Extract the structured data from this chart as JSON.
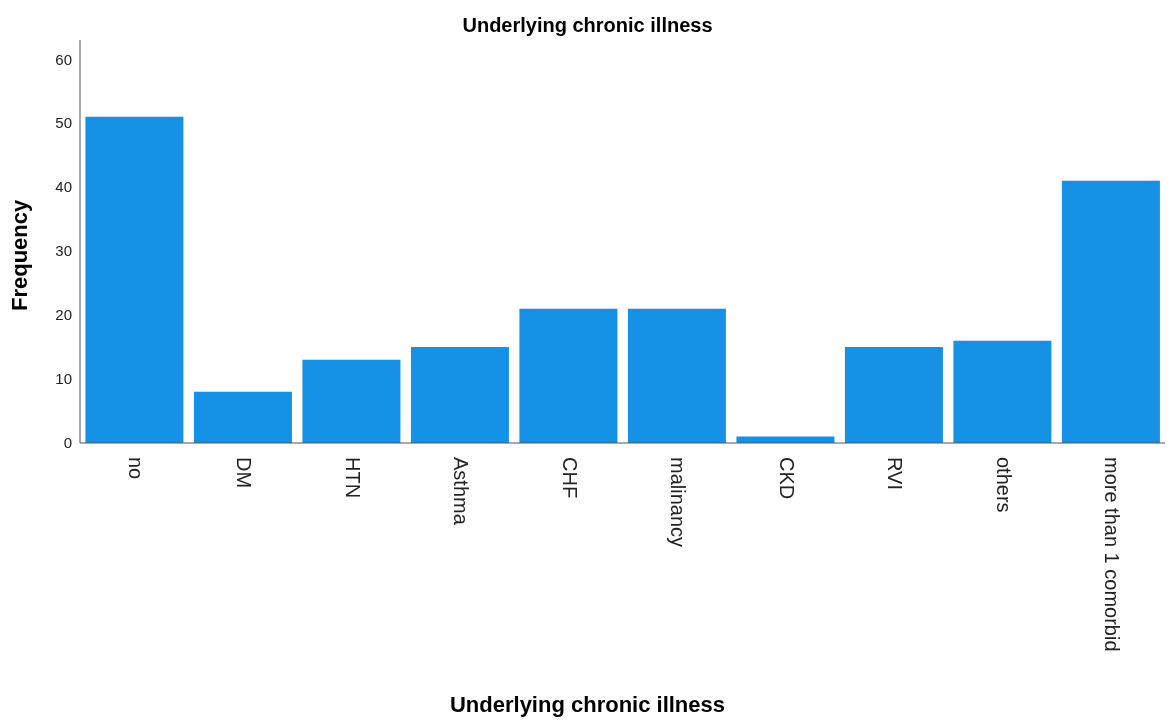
{
  "chart_data": {
    "type": "bar",
    "title": "Underlying chronic illness",
    "xlabel": "Underlying chronic illness",
    "ylabel": "Frequency",
    "categories": [
      "no",
      "DM",
      "HTN",
      "Asthma",
      "CHF",
      "malinancy",
      "CKD",
      "RVI",
      "others",
      "more than 1 comorbid"
    ],
    "values": [
      51,
      8,
      13,
      15,
      21,
      21,
      1,
      15,
      16,
      41
    ],
    "color": "#1591e6",
    "ylim": [
      0,
      63
    ],
    "yticks": [
      0,
      10,
      20,
      30,
      40,
      50,
      60
    ],
    "grid": false,
    "legend": false
  }
}
